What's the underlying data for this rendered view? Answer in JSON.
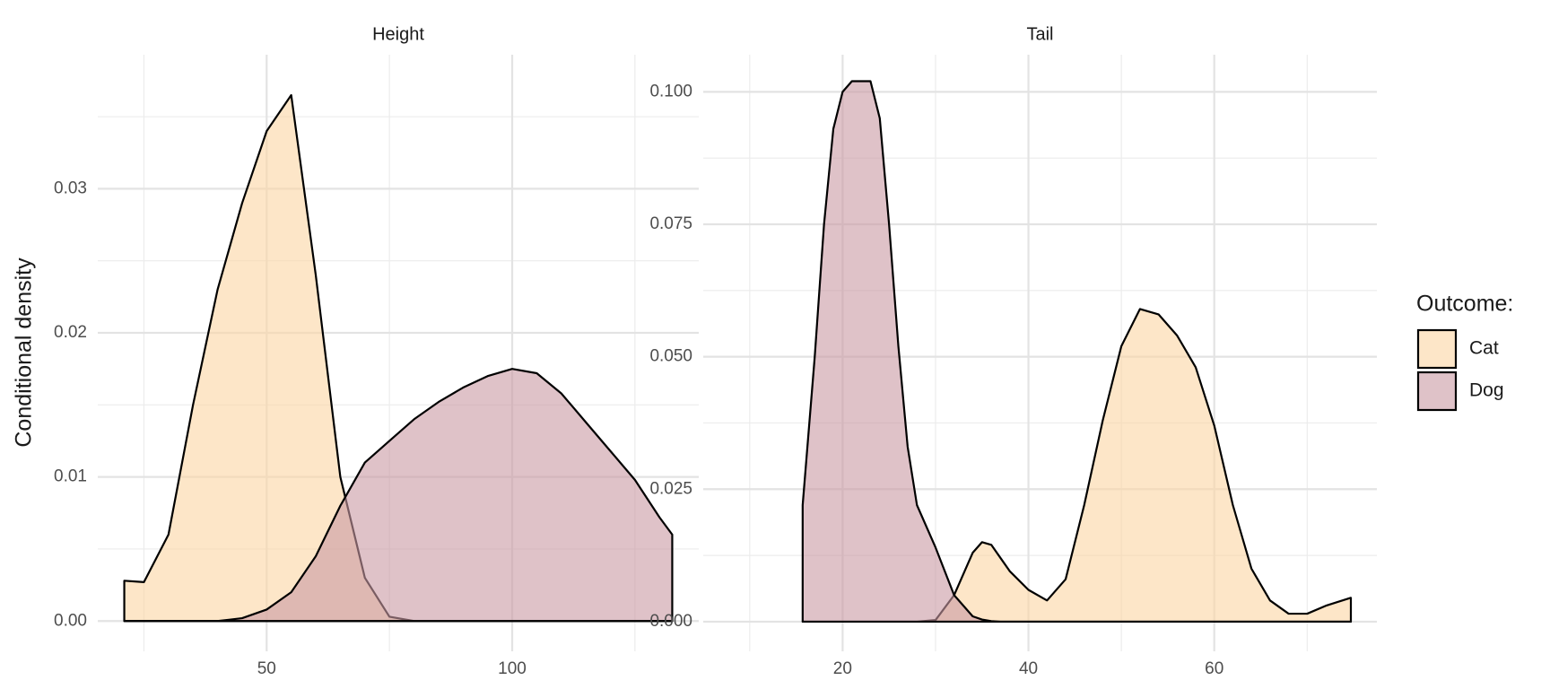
{
  "chart_data": [
    {
      "type": "area",
      "title": "Height",
      "ylabel": "Conditional density",
      "x": [
        21,
        25,
        30,
        35,
        40,
        45,
        50,
        55,
        60,
        65,
        70,
        75,
        80,
        85,
        90,
        95,
        100,
        105,
        110,
        115,
        120,
        125,
        130,
        132.6
      ],
      "series": [
        {
          "name": "Cat",
          "color": "#fbd6a3",
          "values": [
            0.0028,
            0.0027,
            0.006,
            0.015,
            0.023,
            0.029,
            0.034,
            0.0365,
            0.024,
            0.01,
            0.003,
            0.0003,
            0,
            0,
            0,
            0,
            0,
            0,
            0,
            0,
            0,
            0,
            0,
            0
          ]
        },
        {
          "name": "Dog",
          "color": "#c99aa3",
          "values": [
            0,
            0,
            0,
            0,
            0,
            0.0002,
            0.0008,
            0.002,
            0.0045,
            0.008,
            0.011,
            0.0125,
            0.014,
            0.0152,
            0.0162,
            0.017,
            0.0175,
            0.0172,
            0.0158,
            0.0138,
            0.0118,
            0.0098,
            0.0072,
            0.006
          ]
        }
      ],
      "xlim": [
        15.6,
        138
      ],
      "xticks": [
        50,
        100
      ],
      "ylim": [
        -0.0021,
        0.0393
      ],
      "yticks": [
        {
          "value": 0,
          "label": "0.00"
        },
        {
          "value": 0.01,
          "label": "0.01"
        },
        {
          "value": 0.02,
          "label": "0.02"
        },
        {
          "value": 0.03,
          "label": "0.03"
        }
      ],
      "grid": true
    },
    {
      "type": "area",
      "title": "Tail",
      "legend_title": "Outcome:",
      "legend": "right",
      "x": [
        15.7,
        17,
        18,
        19,
        20,
        21,
        22,
        23,
        24,
        25,
        26,
        27,
        28,
        30,
        32,
        34,
        35,
        36,
        37,
        38,
        40,
        42,
        44,
        46,
        48,
        50,
        52,
        54,
        56,
        58,
        60,
        62,
        64,
        66,
        68,
        70,
        72,
        74.7
      ],
      "series": [
        {
          "name": "Cat",
          "color": "#fbd6a3",
          "values": [
            0,
            0,
            0,
            0,
            0,
            0,
            0,
            0,
            0,
            0,
            0,
            0,
            0,
            0.0003,
            0.005,
            0.013,
            0.015,
            0.0145,
            0.012,
            0.0095,
            0.006,
            0.004,
            0.008,
            0.022,
            0.038,
            0.052,
            0.059,
            0.058,
            0.054,
            0.048,
            0.037,
            0.022,
            0.01,
            0.004,
            0.0015,
            0.0015,
            0.003,
            0.0045
          ]
        },
        {
          "name": "Dog",
          "color": "#c99aa3",
          "values": [
            0.022,
            0.05,
            0.075,
            0.093,
            0.1,
            0.102,
            0.102,
            0.102,
            0.095,
            0.075,
            0.052,
            0.033,
            0.022,
            0.014,
            0.005,
            0.001,
            0.0004,
            0.0001,
            0,
            0,
            0,
            0,
            0,
            0,
            0,
            0,
            0,
            0,
            0,
            0,
            0,
            0,
            0,
            0,
            0,
            0,
            0,
            0
          ]
        }
      ],
      "xlim": [
        5,
        77.5
      ],
      "xticks": [
        20,
        40,
        60
      ],
      "ylim": [
        -0.0056,
        0.107
      ],
      "yticks": [
        {
          "value": 0,
          "label": "0.000"
        },
        {
          "value": 0.025,
          "label": "0.025"
        },
        {
          "value": 0.05,
          "label": "0.050"
        },
        {
          "value": 0.075,
          "label": "0.075"
        },
        {
          "value": 0.1,
          "label": "0.100"
        }
      ],
      "grid": true
    }
  ]
}
